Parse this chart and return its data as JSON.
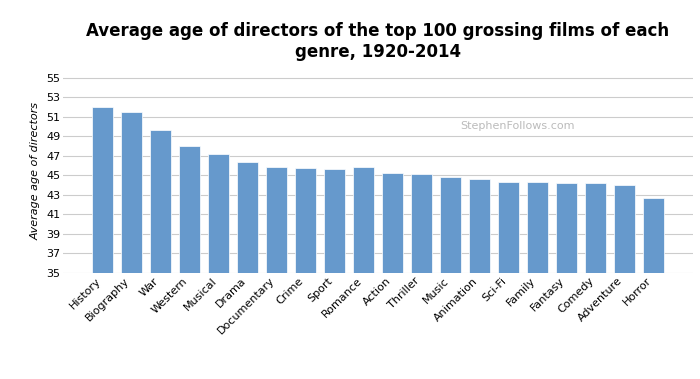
{
  "title": "Average age of directors of the top 100 grossing films of each\ngenre, 1920-2014",
  "ylabel": "Average age of directors",
  "categories": [
    "History",
    "Biography",
    "War",
    "Western",
    "Musical",
    "Drama",
    "Documentary",
    "Crime",
    "Sport",
    "Romance",
    "Action",
    "Thriller",
    "Music",
    "Animation",
    "Sci-Fi",
    "Family",
    "Fantasy",
    "Comedy",
    "Adventure",
    "Horror"
  ],
  "values": [
    52.0,
    51.5,
    49.7,
    48.0,
    47.2,
    46.4,
    45.9,
    45.8,
    45.7,
    45.9,
    45.2,
    45.1,
    44.8,
    44.6,
    44.3,
    44.3,
    44.2,
    44.2,
    44.0,
    42.7
  ],
  "bar_color": "#6699cc",
  "bar_edge_color": "#ffffff",
  "background_color": "#ffffff",
  "grid_color": "#cccccc",
  "ylim": [
    35,
    56
  ],
  "ybase": 35,
  "yticks": [
    35,
    37,
    39,
    41,
    43,
    45,
    47,
    49,
    51,
    53,
    55
  ],
  "watermark": "StephenFollows.com",
  "title_fontsize": 12,
  "ylabel_fontsize": 8,
  "tick_fontsize": 8,
  "watermark_fontsize": 8
}
